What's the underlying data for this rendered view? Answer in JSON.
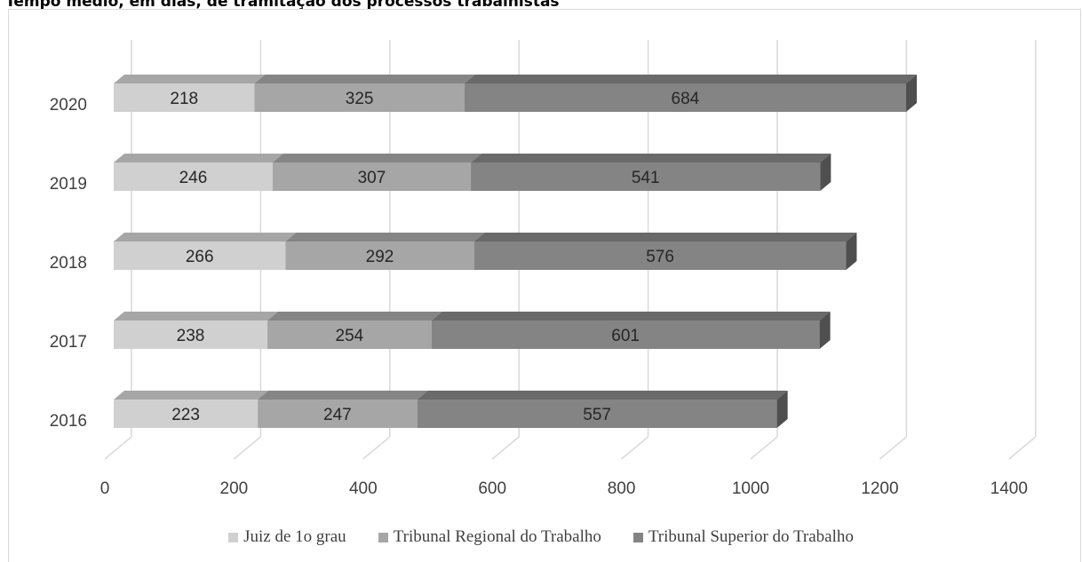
{
  "page": {
    "title": "Tempo médio, em dias, de tramitação dos processos trabalhistas"
  },
  "chart_data": {
    "type": "bar",
    "orientation": "horizontal",
    "stacked": true,
    "categories": [
      "2016",
      "2017",
      "2018",
      "2019",
      "2020"
    ],
    "series": [
      {
        "name": "Juiz de 1o grau",
        "values": [
          223,
          238,
          266,
          246,
          218
        ],
        "color": "#d0d0d0"
      },
      {
        "name": "Tribunal Regional do Trabalho",
        "values": [
          247,
          254,
          292,
          307,
          325
        ],
        "color": "#a6a6a6"
      },
      {
        "name": "Tribunal Superior do Trabalho",
        "values": [
          557,
          601,
          576,
          541,
          684
        ],
        "color": "#848484"
      }
    ],
    "xlim": [
      0,
      1400
    ],
    "xticks": [
      "0",
      "200",
      "400",
      "600",
      "800",
      "1000",
      "1200",
      "1400"
    ],
    "grid": true,
    "legend_position": "bottom"
  }
}
